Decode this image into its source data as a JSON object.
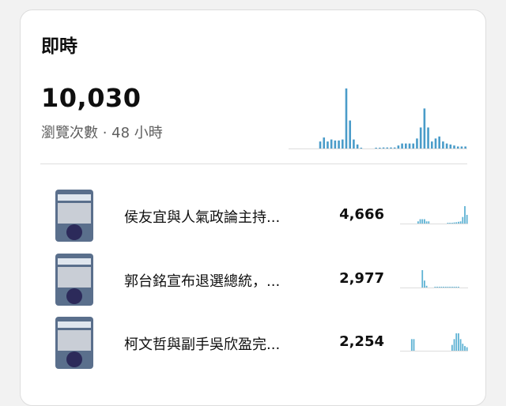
{
  "realtime": {
    "title": "即時",
    "views": "10,030",
    "subtitle": "瀏覽次數 · 48 小時",
    "bar_color": "#4a9cc9",
    "chart_data": {
      "type": "bar",
      "hours": 48,
      "values": [
        0,
        0,
        0,
        0,
        0,
        0,
        0,
        0,
        7,
        11,
        7,
        9,
        8,
        8,
        9,
        60,
        28,
        9,
        4,
        0.5,
        0,
        0,
        0,
        0.5,
        0.5,
        1,
        1,
        1,
        1,
        3,
        5,
        5,
        5,
        5,
        10,
        21,
        40,
        21,
        7,
        10,
        12,
        7,
        5,
        4,
        3,
        2,
        2,
        2
      ]
    }
  },
  "videos": [
    {
      "title": "侯友宜與人氣政論主持...",
      "views": "4,666",
      "spark": [
        0,
        0,
        0,
        0,
        0,
        0,
        0,
        0,
        1,
        2,
        2,
        2,
        1,
        1,
        0,
        0,
        0,
        0,
        0,
        0,
        0,
        0,
        0.3,
        0.3,
        0.3,
        0.5,
        0.6,
        0.8,
        1,
        3,
        8,
        4
      ]
    },
    {
      "title": "郭台銘宣布退選總統，...",
      "views": "2,977",
      "spark": [
        0,
        0,
        0,
        0,
        0,
        0,
        0,
        0,
        0,
        0,
        10,
        4,
        1,
        0,
        0,
        0,
        0.3,
        0.3,
        0.3,
        0.3,
        0.3,
        0.3,
        0.3,
        0.3,
        0.3,
        0.3,
        0.3,
        0.3,
        0,
        0,
        0,
        0
      ]
    },
    {
      "title": "柯文哲與副手吳欣盈完...",
      "views": "2,254",
      "spark": [
        0,
        0,
        0,
        0,
        0,
        1,
        1,
        0,
        0,
        0,
        0,
        0,
        0,
        0,
        0,
        0,
        0,
        0,
        0,
        0,
        0,
        0,
        0,
        0,
        0.5,
        1,
        1.5,
        1.5,
        1,
        0.6,
        0.4,
        0.3
      ]
    }
  ]
}
